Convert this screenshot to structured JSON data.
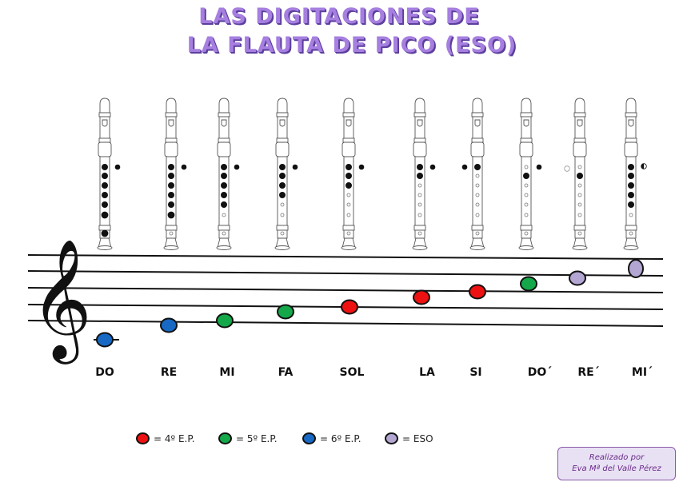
{
  "title": {
    "line1": "LAS DIGITACIONES DE",
    "line2": "LA FLAUTA DE PICO (ESO)"
  },
  "colors": {
    "title": "#a67fe0",
    "title_shadow": "#5b3f9c",
    "level_4ep": "#ee1111",
    "level_5ep": "#14a84a",
    "level_6ep": "#1769c4",
    "level_eso": "#b3a6d2",
    "credit_bg": "#e8e1f4",
    "credit_border": "#8a5aa8"
  },
  "notes": [
    {
      "label": "DO",
      "level": "6ep",
      "fingering": {
        "thumb": "closed",
        "thumb_side": "right",
        "holes": [
          "c",
          "c",
          "c",
          "c",
          "c",
          "c",
          "c"
        ]
      }
    },
    {
      "label": "RE",
      "level": "6ep",
      "fingering": {
        "thumb": "closed",
        "thumb_side": "right",
        "holes": [
          "c",
          "c",
          "c",
          "c",
          "c",
          "c",
          "o"
        ]
      }
    },
    {
      "label": "MI",
      "level": "5ep",
      "fingering": {
        "thumb": "closed",
        "thumb_side": "right",
        "holes": [
          "c",
          "c",
          "c",
          "c",
          "c",
          "o",
          "o"
        ]
      }
    },
    {
      "label": "FA",
      "level": "5ep",
      "fingering": {
        "thumb": "closed",
        "thumb_side": "right",
        "holes": [
          "c",
          "c",
          "c",
          "c",
          "o",
          "o",
          "o"
        ]
      }
    },
    {
      "label": "SOL",
      "level": "4ep",
      "fingering": {
        "thumb": "closed",
        "thumb_side": "right",
        "holes": [
          "c",
          "c",
          "c",
          "o",
          "o",
          "o",
          "o"
        ]
      }
    },
    {
      "label": "LA",
      "level": "4ep",
      "fingering": {
        "thumb": "closed",
        "thumb_side": "right",
        "holes": [
          "c",
          "c",
          "o",
          "o",
          "o",
          "o",
          "o"
        ]
      }
    },
    {
      "label": "SI",
      "level": "4ep",
      "fingering": {
        "thumb": "closed",
        "thumb_side": "left",
        "holes": [
          "c",
          "o",
          "o",
          "o",
          "o",
          "o",
          "o"
        ]
      }
    },
    {
      "label": "DO´",
      "level": "5ep",
      "fingering": {
        "thumb": "closed",
        "thumb_side": "right",
        "holes": [
          "o",
          "c",
          "o",
          "o",
          "o",
          "o",
          "o"
        ]
      }
    },
    {
      "label": "RE´",
      "level": "eso",
      "fingering": {
        "thumb": "open",
        "thumb_side": "left",
        "holes": [
          "o",
          "c",
          "o",
          "o",
          "o",
          "o",
          "o"
        ]
      }
    },
    {
      "label": "MI´",
      "level": "eso",
      "fingering": {
        "thumb": "half",
        "thumb_side": "right",
        "holes": [
          "c",
          "c",
          "c",
          "c",
          "c",
          "o",
          "o"
        ]
      }
    }
  ],
  "legend": [
    {
      "level": "4ep",
      "text": "= 4º E.P."
    },
    {
      "level": "5ep",
      "text": "= 5º E.P."
    },
    {
      "level": "6ep",
      "text": "= 6º E.P."
    },
    {
      "level": "eso",
      "text": "= ESO"
    }
  ],
  "credit": {
    "line1": "Realizado por",
    "line2": "Eva Mª del Valle Pérez"
  }
}
